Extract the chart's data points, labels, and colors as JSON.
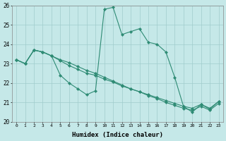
{
  "xlabel": "Humidex (Indice chaleur)",
  "bg_color": "#c5e8e8",
  "grid_color": "#a0cccc",
  "line_color": "#2e8b74",
  "ylim": [
    20,
    26
  ],
  "xlim": [
    -0.5,
    23.5
  ],
  "yticks": [
    20,
    21,
    22,
    23,
    24,
    25,
    26
  ],
  "xticks": [
    0,
    1,
    2,
    3,
    4,
    5,
    6,
    7,
    8,
    9,
    10,
    11,
    12,
    13,
    14,
    15,
    16,
    17,
    18,
    19,
    20,
    21,
    22,
    23
  ],
  "series1": [
    23.2,
    23.0,
    23.7,
    23.6,
    23.4,
    22.4,
    22.0,
    21.7,
    21.4,
    21.6,
    25.8,
    25.9,
    24.5,
    24.65,
    24.8,
    24.1,
    24.0,
    23.6,
    22.3,
    20.8,
    20.5,
    20.9,
    20.65,
    21.05
  ],
  "series2": [
    23.2,
    23.0,
    23.7,
    23.6,
    23.4,
    23.15,
    22.9,
    22.7,
    22.5,
    22.4,
    22.2,
    22.05,
    21.85,
    21.7,
    21.55,
    21.4,
    21.25,
    21.1,
    20.95,
    20.8,
    20.7,
    20.9,
    20.7,
    21.05
  ],
  "series3": [
    23.2,
    23.0,
    23.7,
    23.6,
    23.4,
    23.2,
    23.05,
    22.85,
    22.65,
    22.5,
    22.3,
    22.1,
    21.9,
    21.7,
    21.55,
    21.35,
    21.2,
    21.0,
    20.85,
    20.7,
    20.6,
    20.8,
    20.6,
    20.95
  ]
}
